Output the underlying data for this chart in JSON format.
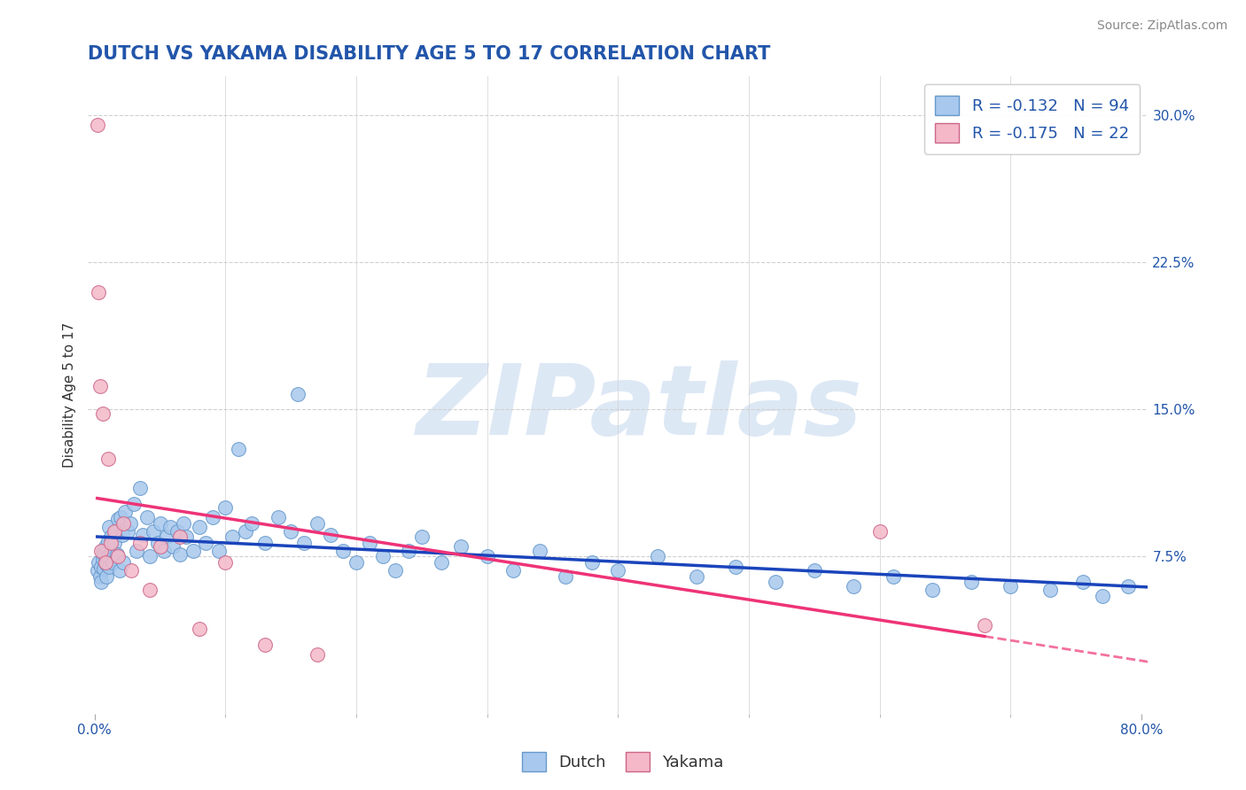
{
  "title": "DUTCH VS YAKAMA DISABILITY AGE 5 TO 17 CORRELATION CHART",
  "source_text": "Source: ZipAtlas.com",
  "ylabel": "Disability Age 5 to 17",
  "xlim": [
    -0.005,
    0.805
  ],
  "ylim": [
    -0.005,
    0.32
  ],
  "ytick_positions": [
    0.075,
    0.15,
    0.225,
    0.3
  ],
  "ytick_labels": [
    "7.5%",
    "15.0%",
    "22.5%",
    "30.0%"
  ],
  "grid_color": "#d0d0d0",
  "background_color": "#ffffff",
  "title_color": "#2255aa",
  "title_fontsize": 15,
  "source_fontsize": 10,
  "source_color": "#888888",
  "watermark_text": "ZIPatlas",
  "watermark_color": "#dde8f5",
  "watermark_fontsize": 80,
  "dutch_color": "#a8c8ed",
  "dutch_edge_color": "#6699cc",
  "yakama_color": "#f4b8c8",
  "yakama_edge_color": "#cc6688",
  "trend_dutch_color": "#1a44bb",
  "trend_yakama_color": "#ee3377",
  "R_dutch": -0.132,
  "N_dutch": 94,
  "R_yakama": -0.175,
  "N_yakama": 22,
  "legend_fontsize": 13,
  "axis_label_fontsize": 11,
  "tick_fontsize": 11,
  "tick_color": "#2255aa",
  "dutch_x": [
    0.002,
    0.003,
    0.004,
    0.005,
    0.005,
    0.006,
    0.006,
    0.007,
    0.007,
    0.008,
    0.008,
    0.009,
    0.009,
    0.01,
    0.01,
    0.011,
    0.011,
    0.012,
    0.013,
    0.014,
    0.015,
    0.016,
    0.017,
    0.018,
    0.019,
    0.02,
    0.021,
    0.022,
    0.023,
    0.025,
    0.027,
    0.03,
    0.032,
    0.035,
    0.037,
    0.04,
    0.042,
    0.045,
    0.048,
    0.05,
    0.053,
    0.055,
    0.058,
    0.06,
    0.063,
    0.065,
    0.068,
    0.07,
    0.075,
    0.08,
    0.085,
    0.09,
    0.095,
    0.1,
    0.105,
    0.11,
    0.115,
    0.12,
    0.13,
    0.14,
    0.15,
    0.155,
    0.16,
    0.17,
    0.18,
    0.19,
    0.2,
    0.21,
    0.22,
    0.23,
    0.24,
    0.25,
    0.265,
    0.28,
    0.3,
    0.32,
    0.34,
    0.36,
    0.38,
    0.4,
    0.43,
    0.46,
    0.49,
    0.52,
    0.55,
    0.58,
    0.61,
    0.64,
    0.67,
    0.7,
    0.73,
    0.755,
    0.77,
    0.79
  ],
  "dutch_y": [
    0.068,
    0.072,
    0.065,
    0.07,
    0.062,
    0.078,
    0.074,
    0.069,
    0.076,
    0.072,
    0.08,
    0.065,
    0.071,
    0.083,
    0.075,
    0.09,
    0.07,
    0.085,
    0.078,
    0.072,
    0.082,
    0.088,
    0.076,
    0.094,
    0.068,
    0.095,
    0.086,
    0.072,
    0.098,
    0.088,
    0.092,
    0.102,
    0.078,
    0.11,
    0.086,
    0.095,
    0.075,
    0.088,
    0.082,
    0.092,
    0.078,
    0.085,
    0.09,
    0.08,
    0.088,
    0.076,
    0.092,
    0.085,
    0.078,
    0.09,
    0.082,
    0.095,
    0.078,
    0.1,
    0.085,
    0.13,
    0.088,
    0.092,
    0.082,
    0.095,
    0.088,
    0.158,
    0.082,
    0.092,
    0.086,
    0.078,
    0.072,
    0.082,
    0.075,
    0.068,
    0.078,
    0.085,
    0.072,
    0.08,
    0.075,
    0.068,
    0.078,
    0.065,
    0.072,
    0.068,
    0.075,
    0.065,
    0.07,
    0.062,
    0.068,
    0.06,
    0.065,
    0.058,
    0.062,
    0.06,
    0.058,
    0.062,
    0.055,
    0.06
  ],
  "yakama_x": [
    0.002,
    0.003,
    0.004,
    0.005,
    0.006,
    0.008,
    0.01,
    0.012,
    0.015,
    0.018,
    0.022,
    0.028,
    0.035,
    0.042,
    0.05,
    0.065,
    0.08,
    0.1,
    0.13,
    0.17,
    0.6,
    0.68
  ],
  "yakama_y": [
    0.295,
    0.21,
    0.162,
    0.078,
    0.148,
    0.072,
    0.125,
    0.082,
    0.088,
    0.075,
    0.092,
    0.068,
    0.082,
    0.058,
    0.08,
    0.085,
    0.038,
    0.072,
    0.03,
    0.025,
    0.088,
    0.04
  ],
  "yakama_trend_x_start": 0.002,
  "yakama_trend_x_solid_end": 0.68,
  "yakama_trend_x_dash_end": 0.805,
  "dutch_trend_x_start": 0.002,
  "dutch_trend_x_end": 0.805
}
